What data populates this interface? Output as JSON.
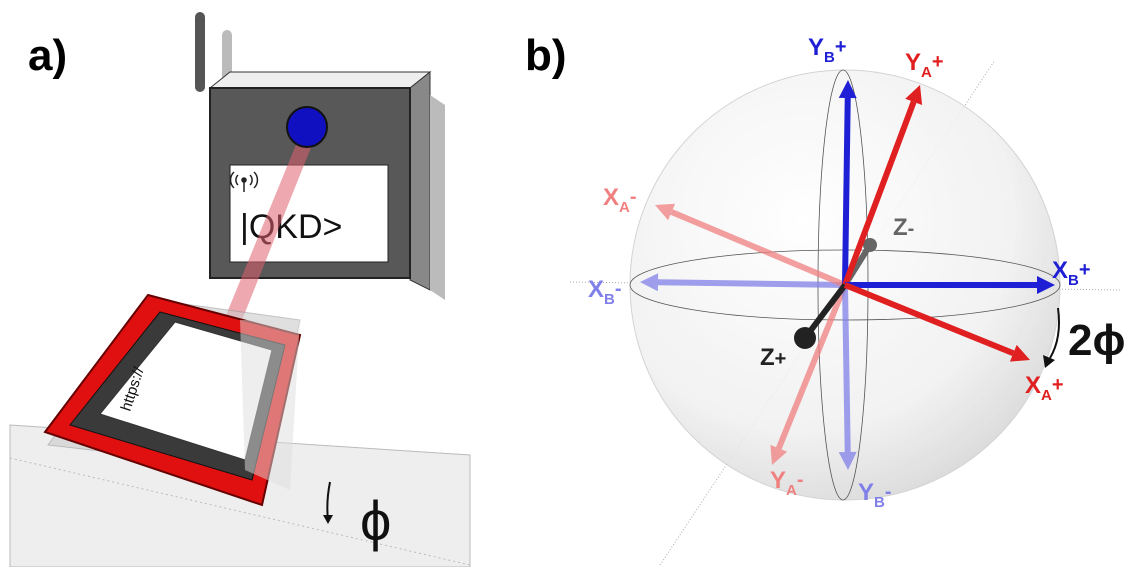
{
  "panel_a": {
    "label": "a)",
    "screen_text": "|QKD>",
    "browser_text": "https://",
    "angle": "ϕ"
  },
  "panel_b": {
    "label": "b)",
    "angle": "2ϕ",
    "axes": [
      {
        "base": "Y",
        "sub": "B",
        "sign": "+",
        "color": "#1f1fd6"
      },
      {
        "base": "Y",
        "sub": "A",
        "sign": "+",
        "color": "#e02020"
      },
      {
        "base": "X",
        "sub": "A",
        "sign": "-",
        "color": "#f08080"
      },
      {
        "base": "Z",
        "sign": "-",
        "color": "#666666"
      },
      {
        "base": "X",
        "sub": "B",
        "sign": "+",
        "color": "#1f1fd6"
      },
      {
        "base": "X",
        "sub": "B",
        "sign": "-",
        "color": "#8080e8"
      },
      {
        "base": "Z",
        "sign": "+",
        "color": "#222222"
      },
      {
        "base": "X",
        "sub": "A",
        "sign": "+",
        "color": "#e02020"
      },
      {
        "base": "Y",
        "sub": "A",
        "sign": "-",
        "color": "#f08080"
      },
      {
        "base": "Y",
        "sub": "B",
        "sign": "-",
        "color": "#8080e8"
      }
    ]
  }
}
